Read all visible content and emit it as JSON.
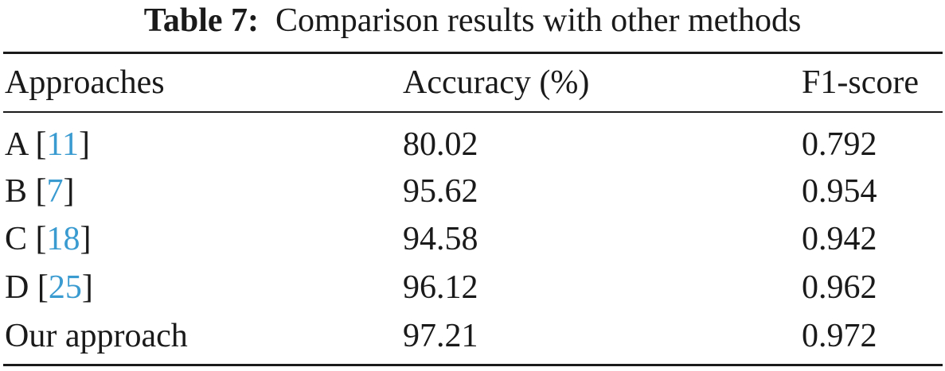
{
  "caption": {
    "label": "Table 7:",
    "text": "Comparison results with other methods"
  },
  "table": {
    "headers": [
      "Approaches",
      "Accuracy (%)",
      "F1-score"
    ],
    "rows": [
      {
        "name": "A",
        "ref": "11",
        "accuracy": "80.02",
        "f1": "0.792"
      },
      {
        "name": "B",
        "ref": "7",
        "accuracy": "95.62",
        "f1": "0.954"
      },
      {
        "name": "C",
        "ref": "18",
        "accuracy": "94.58",
        "f1": "0.942"
      },
      {
        "name": "D",
        "ref": "25",
        "accuracy": "96.12",
        "f1": "0.962"
      },
      {
        "name": "Our approach",
        "ref": null,
        "accuracy": "97.21",
        "f1": "0.972"
      }
    ]
  },
  "colors": {
    "text": "#1a1a1a",
    "reference_link": "#3a9bd1"
  }
}
